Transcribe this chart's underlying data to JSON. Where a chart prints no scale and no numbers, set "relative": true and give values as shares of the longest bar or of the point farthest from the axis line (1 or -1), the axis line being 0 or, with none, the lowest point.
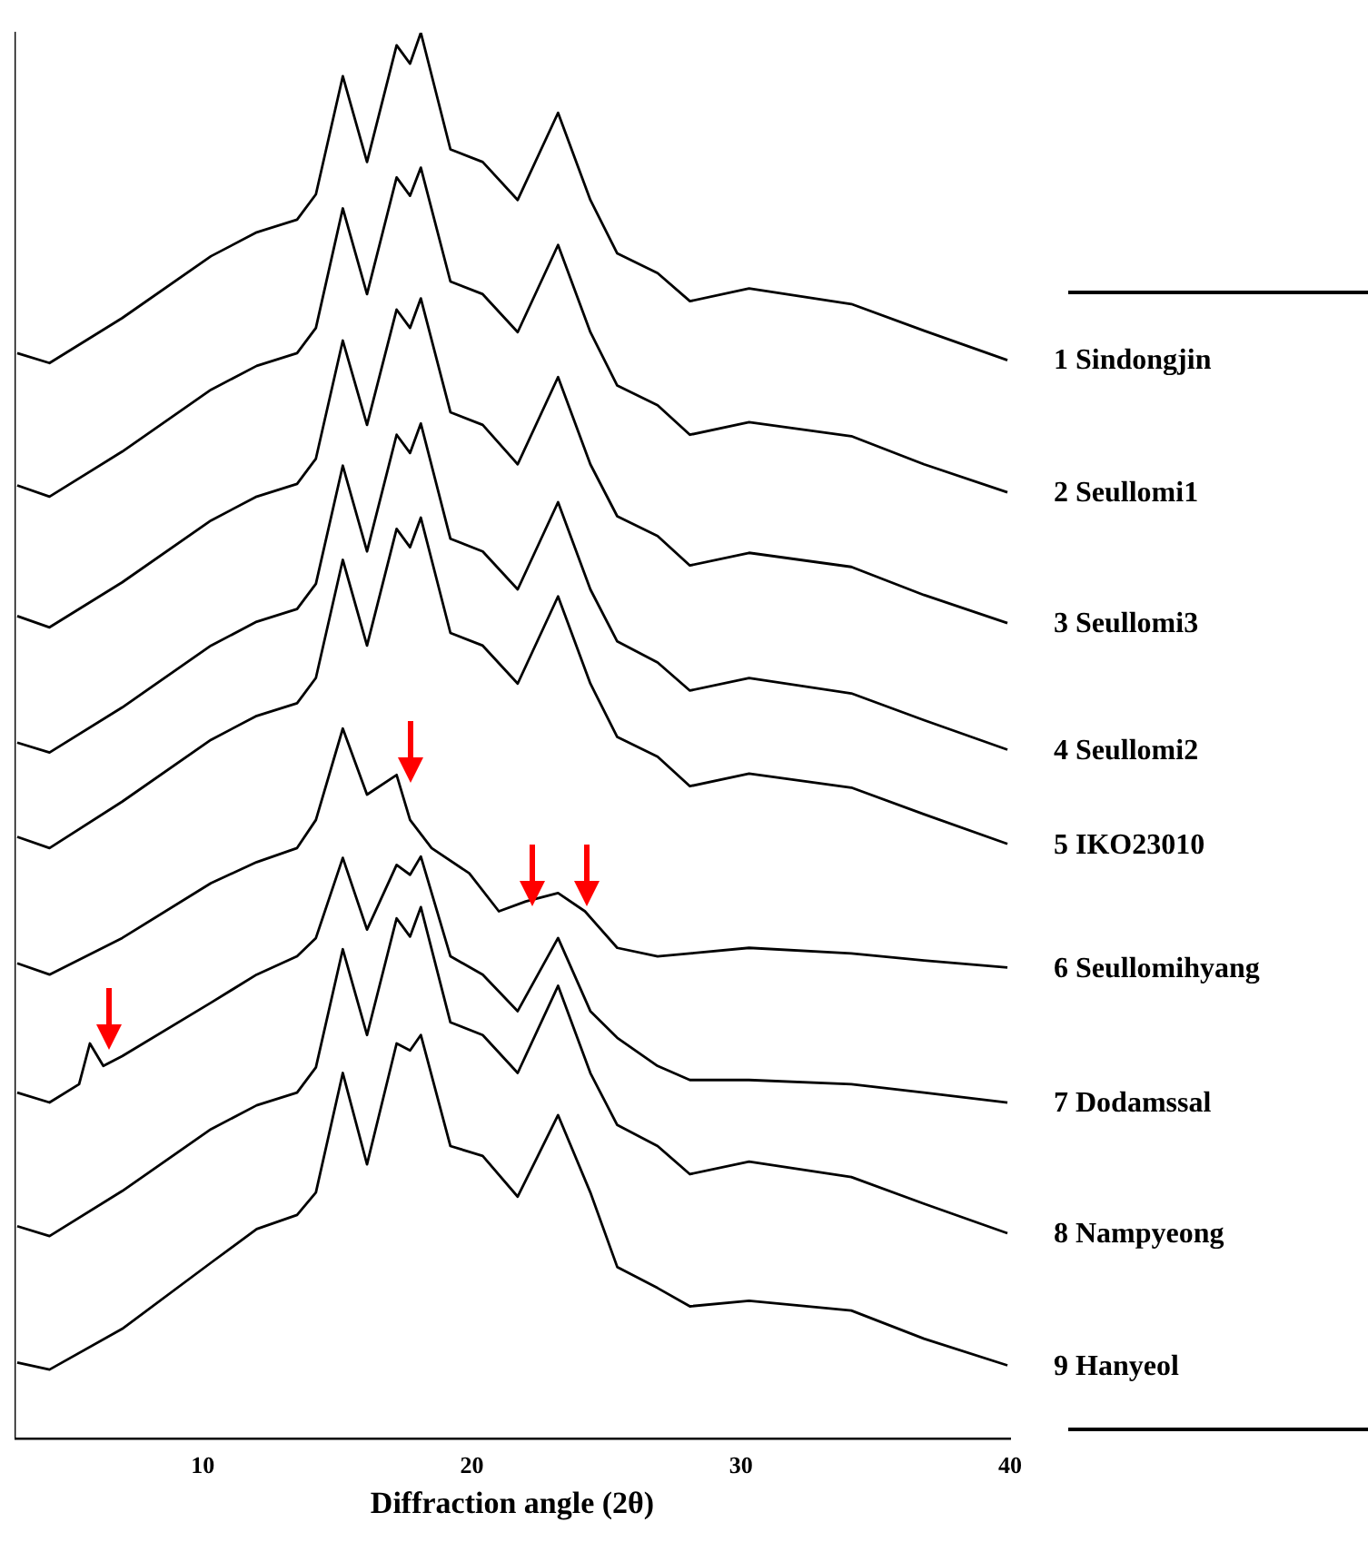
{
  "chart_data": {
    "type": "line",
    "relative": true,
    "xlabel": "Diffraction angle (2θ)",
    "xlim": [
      3,
      40
    ],
    "xticks": [
      10,
      20,
      30,
      40
    ],
    "grid": false,
    "legend": false,
    "marker": "none",
    "line_style": "solid",
    "x": [
      3.1,
      4.3,
      7.0,
      10.3,
      12.0,
      13.5,
      14.2,
      15.2,
      16.1,
      17.2,
      17.7,
      18.1,
      19.2,
      20.4,
      21.7,
      23.2,
      24.4,
      25.4,
      26.9,
      28.1,
      30.3,
      34.1,
      36.8,
      39.9
    ],
    "series": [
      {
        "name": "1 Sindongjin",
        "color": "#000000",
        "values": [
          0.772,
          0.765,
          0.797,
          0.841,
          0.858,
          0.867,
          0.885,
          0.969,
          0.908,
          0.991,
          0.978,
          1.0,
          0.917,
          0.908,
          0.881,
          0.943,
          0.881,
          0.843,
          0.829,
          0.809,
          0.818,
          0.807,
          0.788,
          0.767
        ]
      },
      {
        "name": "2 Seullomi1",
        "color": "#000000",
        "values": [
          0.678,
          0.67,
          0.702,
          0.746,
          0.763,
          0.772,
          0.79,
          0.875,
          0.814,
          0.897,
          0.884,
          0.904,
          0.823,
          0.814,
          0.787,
          0.849,
          0.787,
          0.749,
          0.735,
          0.714,
          0.723,
          0.713,
          0.693,
          0.673
        ]
      },
      {
        "name": "3 Seullomi3",
        "color": "#000000",
        "values": [
          0.585,
          0.577,
          0.609,
          0.653,
          0.67,
          0.679,
          0.697,
          0.781,
          0.721,
          0.803,
          0.79,
          0.811,
          0.73,
          0.721,
          0.693,
          0.755,
          0.693,
          0.656,
          0.642,
          0.621,
          0.63,
          0.62,
          0.6,
          0.58
        ]
      },
      {
        "name": "4 Seullomi2",
        "color": "#000000",
        "values": [
          0.495,
          0.488,
          0.52,
          0.564,
          0.581,
          0.59,
          0.608,
          0.692,
          0.631,
          0.714,
          0.701,
          0.722,
          0.64,
          0.631,
          0.604,
          0.666,
          0.604,
          0.567,
          0.552,
          0.532,
          0.541,
          0.53,
          0.511,
          0.49
        ]
      },
      {
        "name": "5 IKO23010",
        "color": "#000000",
        "values": [
          0.428,
          0.42,
          0.453,
          0.497,
          0.514,
          0.523,
          0.541,
          0.625,
          0.564,
          0.647,
          0.634,
          0.655,
          0.573,
          0.564,
          0.537,
          0.599,
          0.537,
          0.499,
          0.485,
          0.464,
          0.473,
          0.463,
          0.444,
          0.423
        ]
      },
      {
        "name": "6 Seullomihyang",
        "color": "#000000",
        "x": [
          3.1,
          4.3,
          7.0,
          10.3,
          12.0,
          13.5,
          14.2,
          15.2,
          16.1,
          17.2,
          17.7,
          18.5,
          19.9,
          21.0,
          22.0,
          23.2,
          24.2,
          25.4,
          26.9,
          28.1,
          30.3,
          34.1,
          36.8,
          39.9
        ],
        "values": [
          0.338,
          0.33,
          0.356,
          0.395,
          0.41,
          0.42,
          0.44,
          0.505,
          0.458,
          0.472,
          0.44,
          0.42,
          0.402,
          0.375,
          0.382,
          0.388,
          0.375,
          0.349,
          0.343,
          0.345,
          0.349,
          0.345,
          0.34,
          0.335
        ]
      },
      {
        "name": "7 Dodamssal",
        "color": "#000000",
        "x": [
          3.1,
          4.3,
          5.4,
          5.8,
          6.3,
          7.0,
          10.3,
          12.0,
          13.5,
          14.2,
          15.2,
          16.1,
          17.2,
          17.7,
          18.1,
          19.2,
          20.4,
          21.7,
          23.2,
          24.4,
          25.4,
          26.9,
          28.1,
          30.3,
          34.1,
          36.8,
          39.9
        ],
        "values": [
          0.246,
          0.239,
          0.252,
          0.281,
          0.265,
          0.272,
          0.31,
          0.33,
          0.343,
          0.356,
          0.413,
          0.362,
          0.408,
          0.401,
          0.414,
          0.343,
          0.33,
          0.304,
          0.356,
          0.304,
          0.285,
          0.265,
          0.255,
          0.255,
          0.252,
          0.246,
          0.239
        ]
      },
      {
        "name": "8 Nampyeong",
        "color": "#000000",
        "values": [
          0.151,
          0.144,
          0.176,
          0.22,
          0.237,
          0.246,
          0.264,
          0.348,
          0.287,
          0.37,
          0.357,
          0.378,
          0.296,
          0.287,
          0.26,
          0.322,
          0.26,
          0.223,
          0.208,
          0.188,
          0.197,
          0.186,
          0.167,
          0.146
        ]
      },
      {
        "name": "9 Hanyeol",
        "color": "#000000",
        "values": [
          0.054,
          0.049,
          0.078,
          0.125,
          0.149,
          0.159,
          0.175,
          0.26,
          0.195,
          0.281,
          0.276,
          0.287,
          0.208,
          0.201,
          0.172,
          0.23,
          0.175,
          0.122,
          0.107,
          0.094,
          0.098,
          0.091,
          0.071,
          0.052
        ]
      }
    ]
  }
}
